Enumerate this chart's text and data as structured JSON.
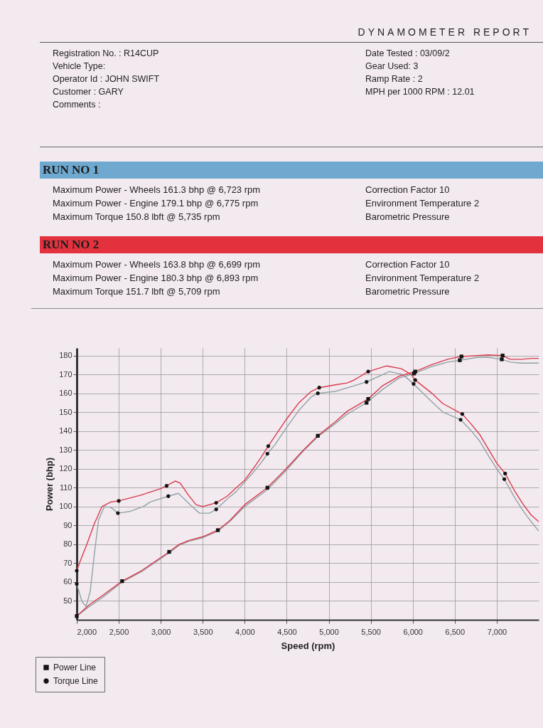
{
  "chart_data": [
    {
      "type": "other",
      "title": "DYNAMOMETER REPORT",
      "annotations": [
        "Registration No. : R14CUP",
        "Date Tested : 03/09/2",
        "Vehicle Type:",
        "Gear Used: 3",
        "Operator Id : JOHN SWIFT",
        "Ramp Rate : 2",
        "Customer : GARY",
        "MPH per 1000 RPM : 12.01",
        "Comments :"
      ]
    },
    {
      "type": "other",
      "title": "RUN NO 1",
      "color": "#6fa9cf",
      "annotations": [
        "Maximum Power - Wheels 161.3 bhp @ 6,723 rpm",
        "Correction Factor 10",
        "Maximum Power - Engine 179.1 bhp @ 6,775 rpm",
        "Environment Temperature 2",
        "Maximum Torque 150.8 lbft @ 5,735 rpm",
        "Barometric Pressure"
      ]
    },
    {
      "type": "other",
      "title": "RUN NO 2",
      "color": "#e3323e",
      "annotations": [
        "Maximum Power - Wheels 163.8 bhp @ 6,699 rpm",
        "Correction Factor 10",
        "Maximum Power - Engine 180.3 bhp @ 6,893 rpm",
        "Environment Temperature 2",
        "Maximum Torque 151.7 lbft @ 5,709 rpm",
        "Barometric Pressure"
      ]
    },
    {
      "type": "line",
      "xlabel": "Speed (rpm)",
      "ylabel": "Power (bhp)",
      "xlim": [
        2000,
        7500
      ],
      "ylim": [
        40,
        184
      ],
      "xticks": [
        {
          "value": 2000,
          "label": "2,000"
        },
        {
          "value": 2500,
          "label": "2,500"
        },
        {
          "value": 3000,
          "label": "3,000"
        },
        {
          "value": 3500,
          "label": "3,500"
        },
        {
          "value": 4000,
          "label": "4,000"
        },
        {
          "value": 4500,
          "label": "4,500"
        },
        {
          "value": 5000,
          "label": "5,000"
        },
        {
          "value": 5500,
          "label": "5,500"
        },
        {
          "value": 6000,
          "label": "6,000"
        },
        {
          "value": 6500,
          "label": "6,500"
        },
        {
          "value": 7000,
          "label": "7,000"
        }
      ],
      "yticks": [
        50,
        60,
        70,
        80,
        90,
        100,
        110,
        120,
        130,
        140,
        150,
        160,
        170,
        180
      ],
      "grid": true,
      "legend": "bottom left",
      "series": [
        {
          "color": "#8fa3a6",
          "x": [
            2000,
            2150,
            2310,
            2540,
            2770,
            3100,
            3220,
            3330,
            3500,
            3680,
            3820,
            4000,
            4270,
            4470,
            4700,
            4870,
            5080,
            5220,
            5450,
            5640,
            5835,
            6015,
            6215,
            6415,
            6560,
            6765,
            6900,
            7060,
            7160,
            7290,
            7420,
            7500
          ],
          "values": [
            42,
            47,
            52,
            60,
            65.5,
            75.5,
            79.5,
            81.5,
            83.5,
            87,
            92,
            100,
            109,
            118,
            129.5,
            137,
            144,
            149,
            155,
            162,
            168,
            170.5,
            174,
            176.5,
            177.5,
            179,
            179,
            178,
            176.5,
            176,
            176,
            176
          ]
        },
        {
          "color": "#8fa3a6",
          "x": [
            2000,
            2060,
            2110,
            2160,
            2210,
            2260,
            2330,
            2410,
            2490,
            2640,
            2790,
            2880,
            3090,
            3210,
            3350,
            3460,
            3580,
            3660,
            3790,
            3900,
            4000,
            4100,
            4200,
            4270,
            4355,
            4500,
            4645,
            4790,
            4870,
            5080,
            5300,
            5450,
            5720,
            5880,
            6010,
            6215,
            6360,
            6570,
            6690,
            6800,
            6900,
            7000,
            7090,
            7210,
            7310,
            7410,
            7500
          ],
          "values": [
            59,
            50,
            47,
            55,
            75,
            93,
            100,
            99.5,
            96.5,
            97.5,
            100,
            102.5,
            105.5,
            107,
            101,
            96.5,
            96.5,
            98.5,
            104,
            108,
            113,
            118,
            123.5,
            128,
            132.5,
            142,
            151,
            158,
            160,
            161,
            164,
            166,
            171.5,
            170,
            165,
            156,
            150,
            146,
            140.5,
            134.5,
            127,
            120,
            114.5,
            105,
            98,
            92,
            87
          ]
        },
        {
          "color": "#d93a4c",
          "x": [
            2000,
            2150,
            2310,
            2540,
            2770,
            3100,
            3220,
            3330,
            3500,
            3680,
            3820,
            4000,
            4270,
            4470,
            4700,
            4870,
            5080,
            5220,
            5470,
            5640,
            5835,
            6030,
            6215,
            6415,
            6580,
            6765,
            6900,
            7070,
            7160,
            7290,
            7420,
            7500
          ],
          "values": [
            42,
            48,
            53,
            60.5,
            66,
            76,
            80,
            82,
            84,
            87.5,
            92.5,
            101,
            110,
            119,
            130,
            137.5,
            145,
            150.5,
            157,
            164,
            169,
            171.5,
            175,
            178,
            179.5,
            180,
            180.3,
            180,
            178,
            178,
            178.5,
            178.5
          ]
        },
        {
          "color": "#d93a4c",
          "x": [
            2000,
            2040,
            2120,
            2210,
            2300,
            2410,
            2500,
            2760,
            3000,
            3070,
            3170,
            3230,
            3330,
            3420,
            3500,
            3660,
            3790,
            3900,
            4000,
            4100,
            4200,
            4280,
            4355,
            4500,
            4645,
            4790,
            4887,
            5080,
            5220,
            5300,
            5470,
            5690,
            5865,
            5980,
            6030,
            6215,
            6360,
            6590,
            6690,
            6800,
            6900,
            7000,
            7100,
            7210,
            7310,
            7410,
            7500
          ],
          "values": [
            66,
            71,
            80,
            91,
            100,
            102.5,
            103,
            106,
            109.5,
            111,
            113.5,
            112.5,
            106,
            101,
            100,
            102,
            105.5,
            110,
            114,
            120,
            126.5,
            132,
            137,
            146.5,
            155,
            161,
            163,
            164.5,
            165.5,
            167,
            171.5,
            174.5,
            173,
            170,
            167,
            160.5,
            154.5,
            149,
            144,
            138,
            130.5,
            123,
            117.5,
            108.5,
            101.5,
            95.5,
            92
          ]
        },
        {
          "type": "scatter",
          "name": "Power Line",
          "color": "#141414",
          "marker": "square",
          "x": [
            2000,
            2540,
            3100,
            3680,
            4270,
            4870,
            5470,
            5450,
            6030,
            6015,
            6580,
            6560,
            7070,
            7060
          ],
          "values": [
            42,
            60.5,
            76,
            87.5,
            110,
            137.5,
            157,
            155,
            171.5,
            170.5,
            179.5,
            177.5,
            180,
            178
          ]
        },
        {
          "type": "scatter",
          "name": "Torque Line",
          "color": "#141414",
          "marker": "circle",
          "x": [
            2000,
            2000,
            2500,
            2490,
            3070,
            3090,
            3660,
            3660,
            4280,
            4270,
            4887,
            4870,
            5470,
            5450,
            6030,
            6010,
            6590,
            6570,
            7100,
            7090
          ],
          "values": [
            66,
            59,
            103,
            96.5,
            111,
            105.5,
            102,
            98.5,
            132,
            128,
            163,
            160,
            171.5,
            166,
            167,
            165,
            149,
            146,
            117.5,
            114.5
          ]
        }
      ]
    }
  ]
}
